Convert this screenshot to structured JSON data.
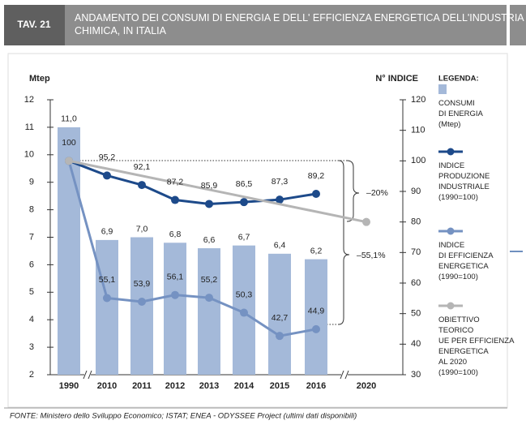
{
  "chart_data": {
    "type": "bar",
    "tag": "TAV. 21",
    "title": "ANDAMENTO DEI CONSUMI DI ENERGIA E DELL' EFFICIENZA ENERGETICA DELL'INDUSTRIA\nCHIMICA, IN ITALIA",
    "ylabel": "Mtep",
    "y2label": "N° INDICE",
    "legend_title": "LEGENDA:",
    "legend": "right",
    "categories": [
      "1990",
      "2010",
      "2011",
      "2012",
      "2013",
      "2014",
      "2015",
      "2016",
      "2020"
    ],
    "ylim": [
      2,
      12
    ],
    "yticks": [
      2,
      3,
      4,
      5,
      6,
      7,
      8,
      9,
      10,
      11,
      12
    ],
    "y2lim": [
      30,
      120
    ],
    "y2ticks": [
      30,
      40,
      50,
      60,
      70,
      80,
      90,
      100,
      110,
      120
    ],
    "grid": false,
    "series": [
      {
        "name": "CONSUMI\nDI ENERGIA\n(Mtep)",
        "type": "bar",
        "color": "#a4b9d9",
        "values": [
          11.0,
          6.9,
          7.0,
          6.8,
          6.6,
          6.7,
          6.4,
          6.2,
          null
        ],
        "value_labels": [
          "11,0",
          "6,9",
          "7,0",
          "6,8",
          "6,6",
          "6,7",
          "6,4",
          "6,2",
          null
        ]
      },
      {
        "name": "INDICE\nPRODUZIONE\nINDUSTRIALE\n(1990=100)",
        "type": "line",
        "axis": "y2",
        "color": "#1d4a8a",
        "values": [
          100,
          95.2,
          92.1,
          87.2,
          85.9,
          86.5,
          87.3,
          89.2,
          null
        ],
        "value_labels": [
          "100",
          "95,2",
          "92,1",
          "87,2",
          "85,9",
          "86,5",
          "87,3",
          "89,2",
          null
        ]
      },
      {
        "name": "INDICE\nDI EFFICIENZA\nENERGETICA\n(1990=100)",
        "type": "line",
        "axis": "y2",
        "color": "#7592c2",
        "values": [
          100,
          55.1,
          53.9,
          56.1,
          55.2,
          50.3,
          42.7,
          44.9,
          null
        ],
        "value_labels": [
          null,
          "55,1",
          "53,9",
          "56,1",
          "55,2",
          "50,3",
          "42,7",
          "44,9",
          null
        ]
      },
      {
        "name": "OBIETTIVO\nTEORICO\nUE PER EFFICIENZA\nENERGETICA\nAL 2020\n(1990=100)",
        "type": "line",
        "axis": "y2",
        "color": "#b5b5b5",
        "connect_gaps": true,
        "values": [
          100,
          null,
          null,
          null,
          null,
          null,
          null,
          null,
          80
        ]
      }
    ],
    "annotations": [
      "–20%",
      "–55,1%"
    ],
    "source": "FONTE: Ministero dello Sviluppo Economico; ISTAT; ENEA - ODYSSEE Project (ultimi dati disponibili)"
  }
}
